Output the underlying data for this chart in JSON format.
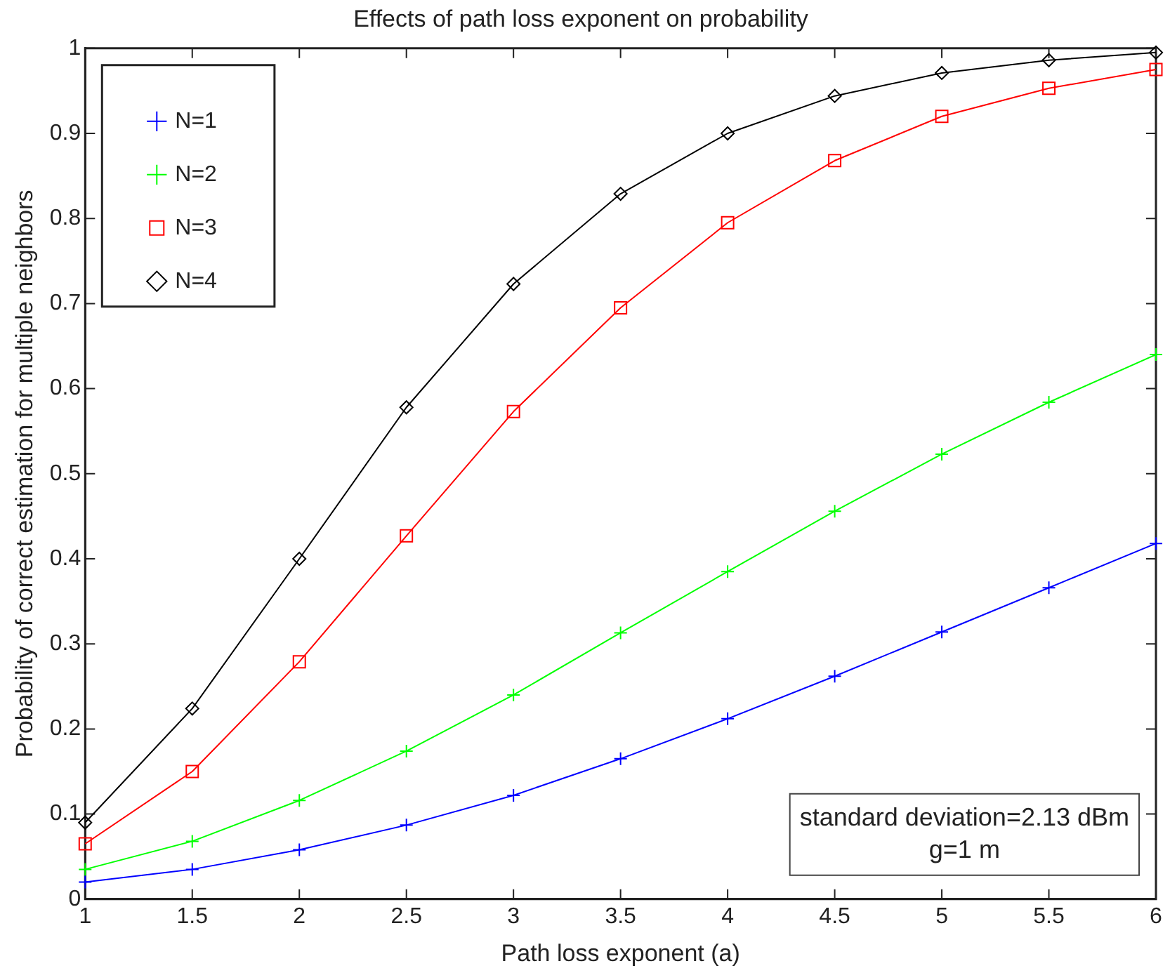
{
  "chart_data": {
    "type": "line",
    "title": "Effects of path loss exponent on probability",
    "xlabel": "Path loss exponent (a)",
    "ylabel": "Probability of correct estimation for multiple neighbors",
    "x": [
      1,
      1.5,
      2,
      2.5,
      3,
      3.5,
      4,
      4.5,
      5,
      5.5,
      6
    ],
    "series": [
      {
        "name": "N=1",
        "color": "#0000ff",
        "marker": "cross",
        "values": [
          0.02,
          0.035,
          0.058,
          0.087,
          0.122,
          0.165,
          0.212,
          0.262,
          0.314,
          0.366,
          0.418
        ]
      },
      {
        "name": "N=2",
        "color": "#00ff00",
        "marker": "cross",
        "values": [
          0.035,
          0.068,
          0.116,
          0.174,
          0.24,
          0.313,
          0.385,
          0.456,
          0.523,
          0.584,
          0.64
        ]
      },
      {
        "name": "N=3",
        "color": "#ff0000",
        "marker": "square",
        "values": [
          0.065,
          0.15,
          0.279,
          0.427,
          0.573,
          0.695,
          0.795,
          0.868,
          0.92,
          0.953,
          0.975
        ]
      },
      {
        "name": "N=4",
        "color": "#000000",
        "marker": "diamond",
        "values": [
          0.09,
          0.224,
          0.4,
          0.578,
          0.723,
          0.829,
          0.9,
          0.944,
          0.971,
          0.986,
          0.995
        ]
      }
    ],
    "xlim": [
      1,
      6
    ],
    "xticks": [
      1,
      1.5,
      2,
      2.5,
      3,
      3.5,
      4,
      4.5,
      5,
      5.5,
      6
    ],
    "ylim": [
      0,
      1
    ],
    "yticks": [
      0,
      0.1,
      0.2,
      0.3,
      0.4,
      0.5,
      0.6,
      0.7,
      0.8,
      0.9,
      1
    ],
    "grid": false,
    "legend": "top left",
    "line_style": "solid",
    "annotations": [
      "standard deviation=2.13 dBm",
      "g=1 m"
    ]
  }
}
